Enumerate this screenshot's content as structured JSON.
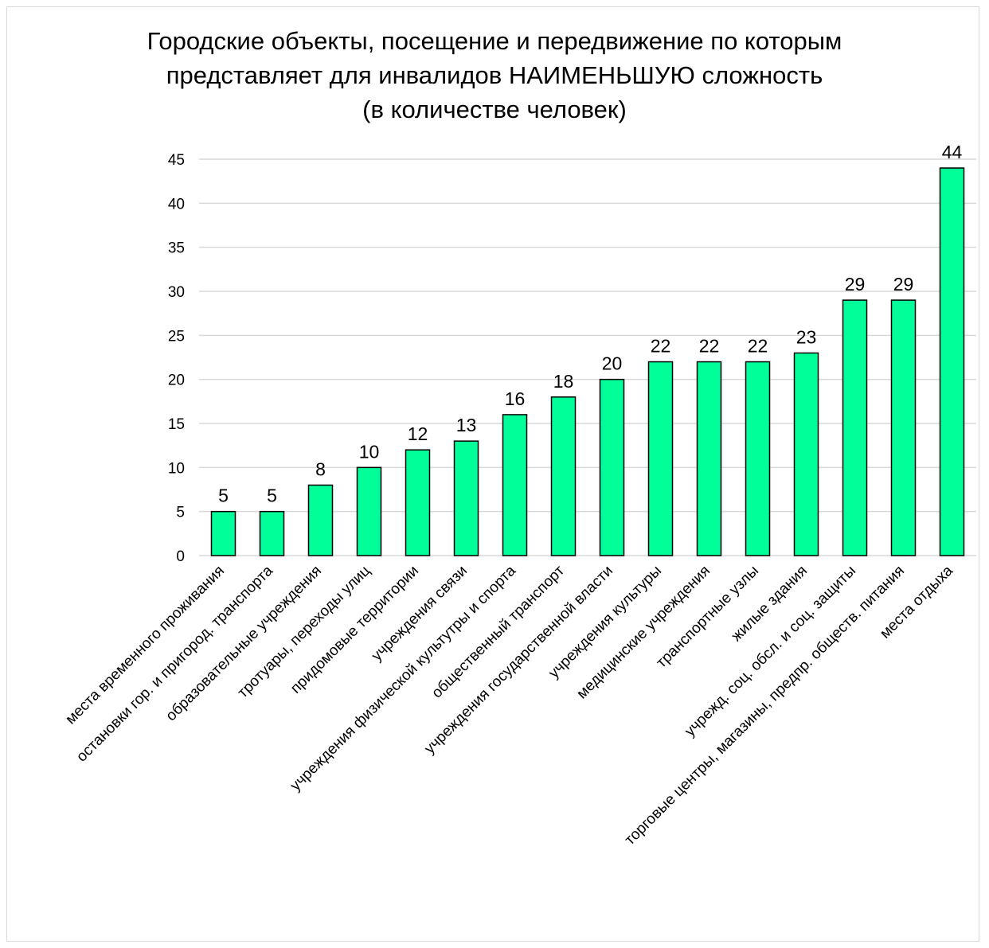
{
  "chart_data": {
    "type": "bar",
    "title_lines": [
      "Городские объекты, посещение и передвижение по которым",
      "представляет для инвалидов НАИМЕНЬШУЮ сложность",
      "(в количестве человек)"
    ],
    "categories": [
      "места временного проживания",
      "остановки гор. и пригород. транспорта",
      "образовательные учреждения",
      "тротуары, переходы улиц",
      "придомовые территории",
      "учреждения связи",
      "учреждения физической культутры и спорта",
      "общественный транспорт",
      "учреждения государственной власти",
      "учреждения культуры",
      "медицинские учреждения",
      "транспортные узлы",
      "жилые здания",
      "учрежд. соц. обсл. и соц. защиты",
      "торговые центры, магазины, предпр. обществ. питания",
      "места отдыха"
    ],
    "values": [
      5,
      5,
      8,
      10,
      12,
      13,
      16,
      18,
      20,
      22,
      22,
      22,
      23,
      29,
      29,
      44
    ],
    "ylim": [
      0,
      45
    ],
    "yticks": [
      0,
      5,
      10,
      15,
      20,
      25,
      30,
      35,
      40,
      45
    ],
    "grid": true,
    "data_labels": true,
    "bar_color": "#00FF99",
    "bar_edge_color": "#000000",
    "grid_color": "#d9d9d9"
  }
}
